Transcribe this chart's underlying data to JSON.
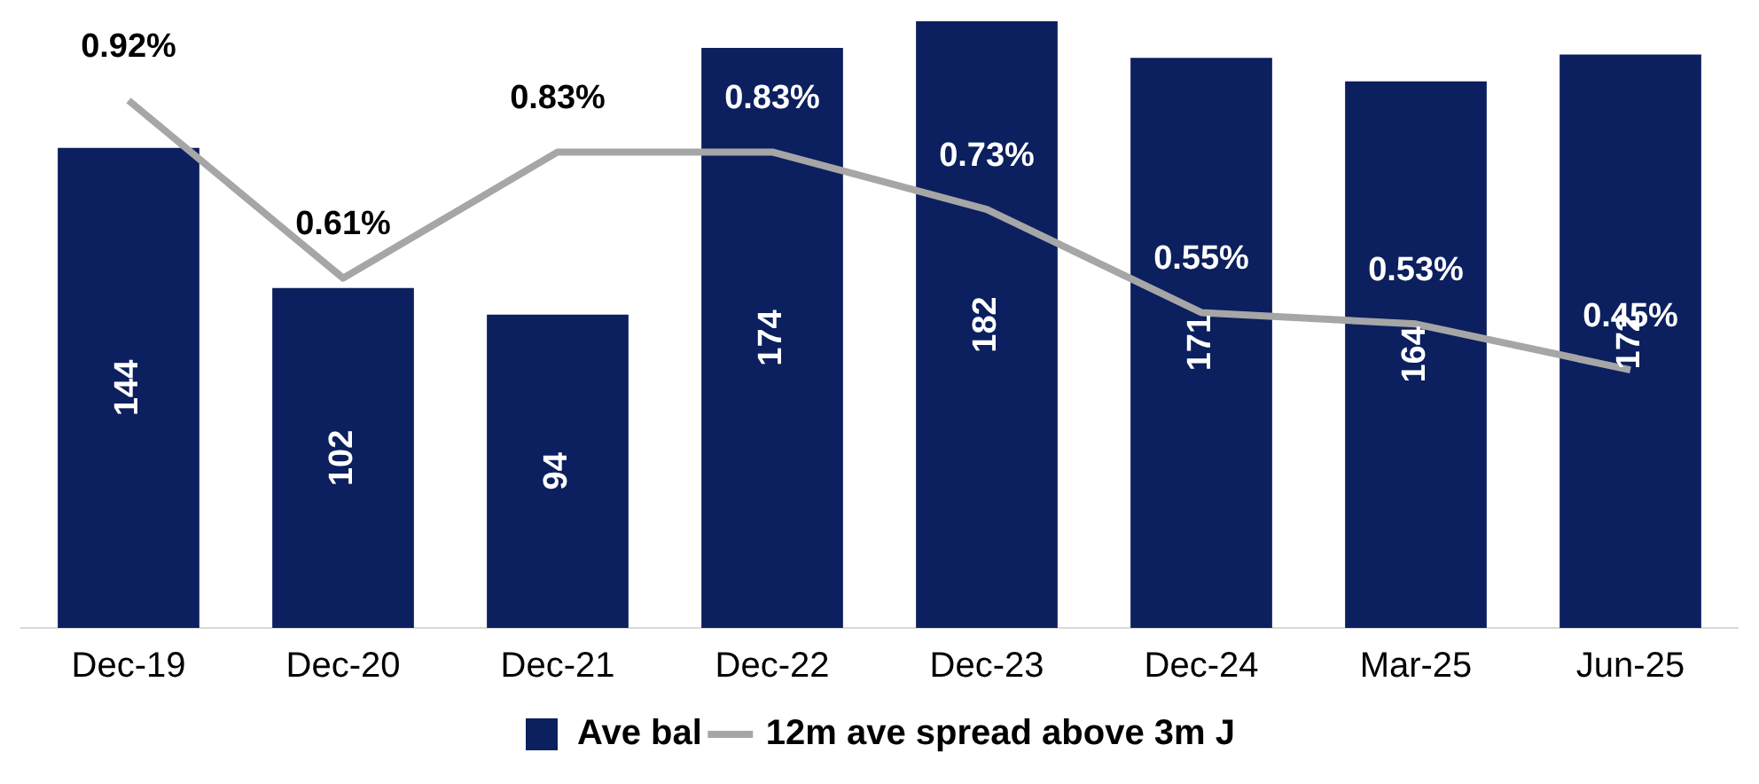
{
  "chart_data": {
    "type": "bar",
    "categories": [
      "Dec-19",
      "Dec-20",
      "Dec-21",
      "Dec-22",
      "Dec-23",
      "Dec-24",
      "Mar-25",
      "Jun-25"
    ],
    "series": [
      {
        "name": "Ave bal",
        "color": "#0c1f5e",
        "values": [
          144,
          102,
          94,
          174,
          182,
          171,
          164,
          172
        ]
      },
      {
        "name": "12m ave spread above 3m J",
        "type": "line",
        "axis": "y2",
        "color": "#a6a6a6",
        "values": [
          0.92,
          0.61,
          0.83,
          0.83,
          0.73,
          0.55,
          0.53,
          0.45
        ],
        "value_labels": [
          "0.92%",
          "0.61%",
          "0.83%",
          "0.83%",
          "0.73%",
          "0.55%",
          "0.53%",
          "0.45%"
        ]
      }
    ],
    "data_labels": true,
    "tick_labels": "x",
    "grid": false,
    "legend": "bottom",
    "marker": "none",
    "line_style": "solid"
  }
}
